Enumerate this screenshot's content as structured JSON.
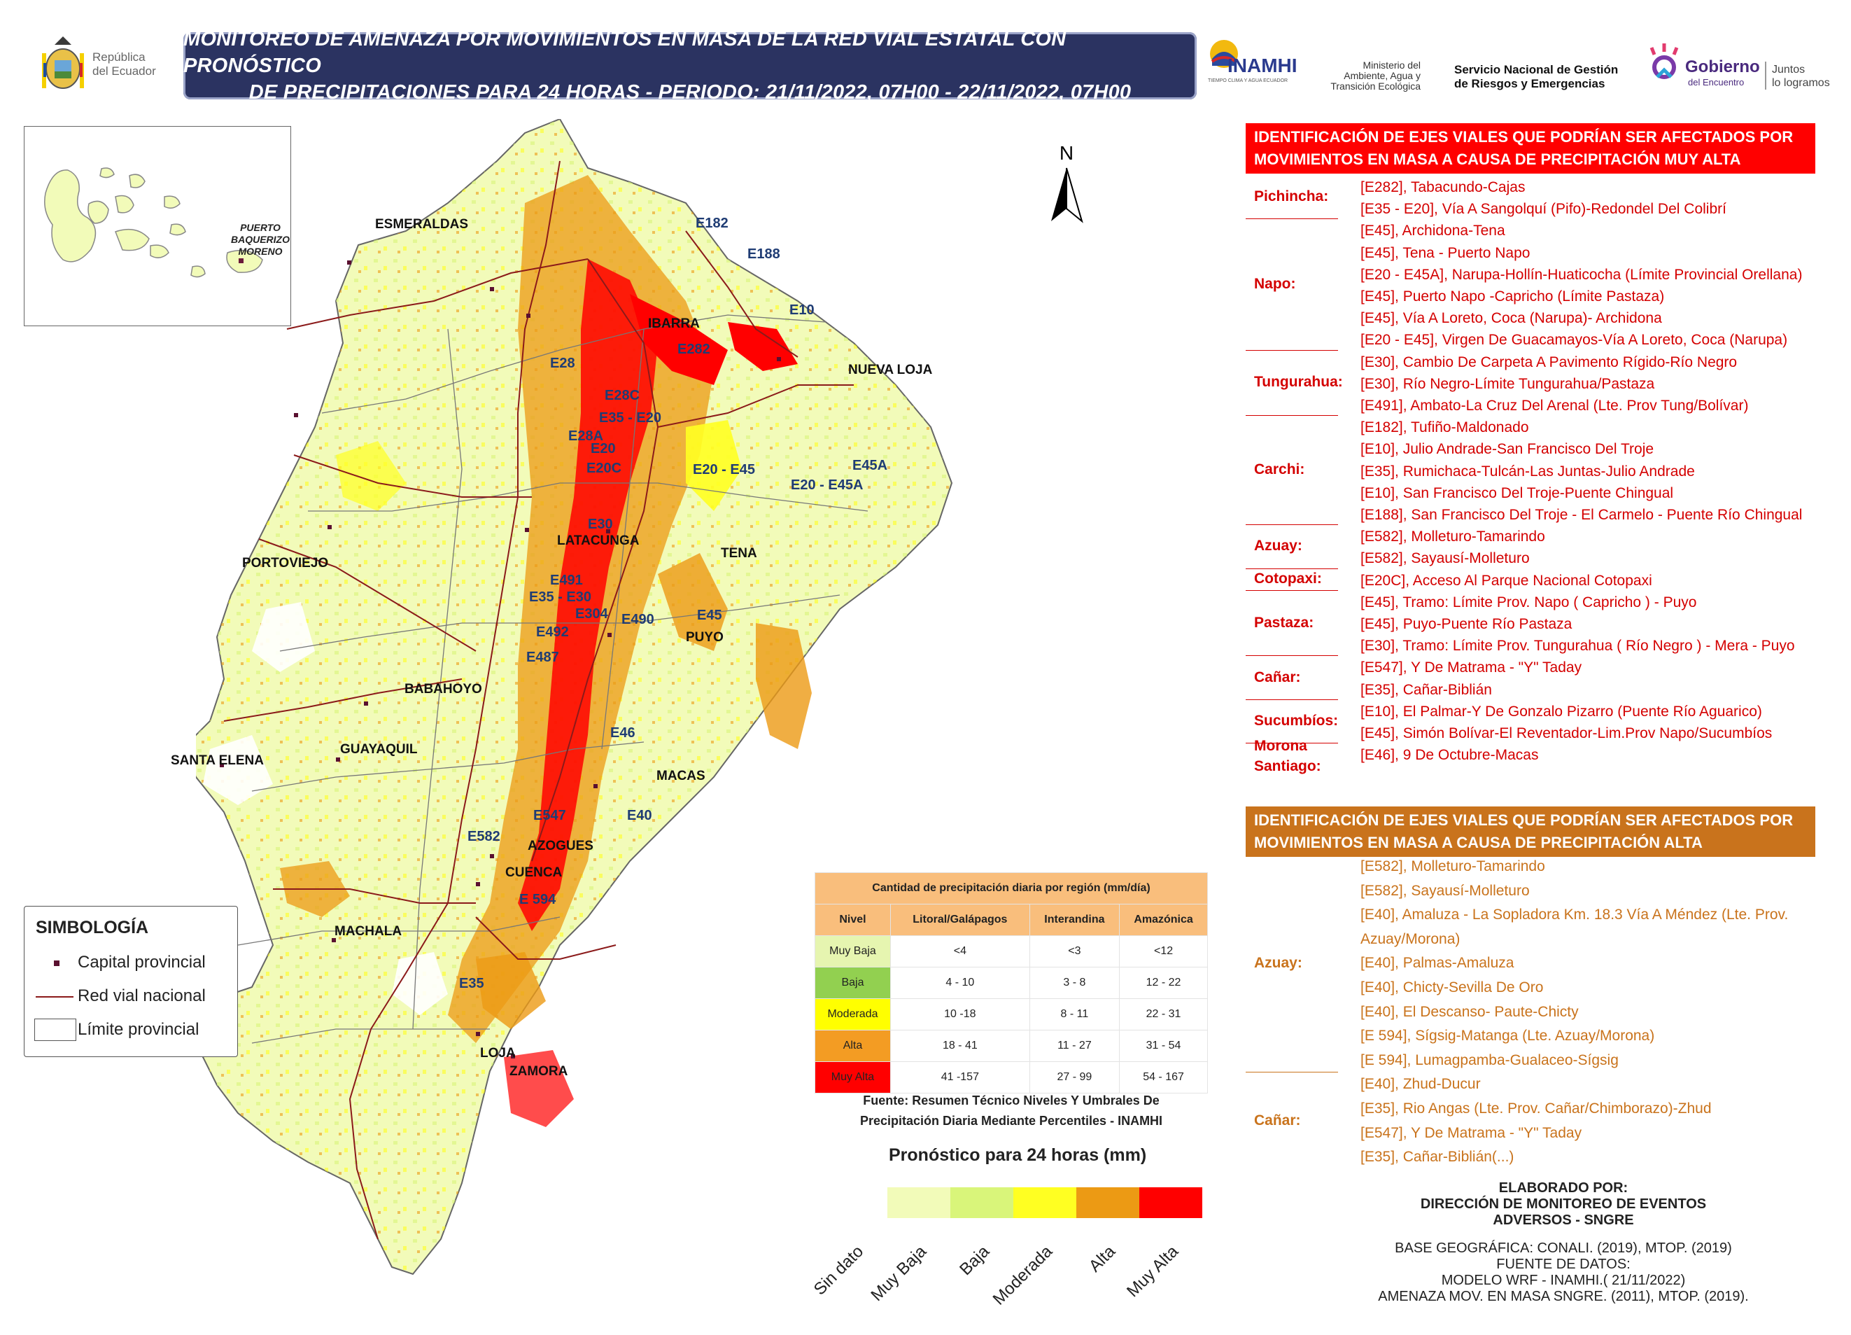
{
  "header": {
    "title_line1": "MONITOREO DE AMENAZA POR MOVIMIENTOS EN MASA DE LA RED VIAL  ESTATAL  CON PRONÓSTICO",
    "title_line2": "DE  PRECIPITACIONES PARA 24 HORAS - PERIODO: 21/11/2022, 07H00 - 22/11/2022, 07H00"
  },
  "logos": {
    "republica": [
      "República",
      "del Ecuador"
    ],
    "inamhi": "INAMHI",
    "inamhi_sub": "TIEMPO CLIMA Y AGUA ECUADOR",
    "ministerio": [
      "Ministerio del",
      "Ambiente, Agua y",
      "Transición Ecológica"
    ],
    "sngre": [
      "Servicio Nacional de Gestión",
      "de Riesgos y Emergencias"
    ],
    "gobierno": [
      "Gobierno",
      "del Encuentro"
    ],
    "juntos": [
      "Juntos",
      "lo logramos"
    ]
  },
  "map": {
    "north": "N",
    "inset_label": [
      "PUERTO",
      "BAQUERIZO",
      "MORENO"
    ],
    "cities": [
      "ESMERALDAS",
      "IBARRA",
      "NUEVA LOJA",
      "PORTOVIEJO",
      "LATACUNGA",
      "TENA",
      "PUYO",
      "BABAHOYO",
      "SANTA ELENA",
      "GUAYAQUIL",
      "MACAS",
      "AZOGUES",
      "CUENCA",
      "MACHALA",
      "LOJA",
      "ZAMORA"
    ],
    "roads": [
      "E182",
      "E188",
      "E10",
      "E282",
      "E28",
      "E28C",
      "E35 - E20",
      "E28A",
      "E20",
      "E20C",
      "E20 - E45",
      "E20 - E45A",
      "E45A",
      "E30",
      "E491",
      "E35 - E30",
      "E304",
      "E490",
      "E45",
      "E492",
      "E487",
      "E46",
      "E547",
      "E40",
      "E582",
      "E 594",
      "E35"
    ]
  },
  "legend": {
    "title": "SIMBOLOGÍA",
    "items": [
      "Capital provincial",
      "Red vial nacional",
      "Límite provincial"
    ]
  },
  "precip_table": {
    "title": "Cantidad de precipitación diaria por región (mm/día)",
    "headers": [
      "Nivel",
      "Litoral/Galápagos",
      "Interandina",
      "Amazónica"
    ],
    "rows": [
      {
        "level": "Muy Baja",
        "color": "#e6f5b0",
        "litoral": "<4",
        "interandina": "<3",
        "amazonica": "<12"
      },
      {
        "level": "Baja",
        "color": "#92d050",
        "litoral": "4 - 10",
        "interandina": "3 - 8",
        "amazonica": "12 - 22"
      },
      {
        "level": "Moderada",
        "color": "#ffff00",
        "litoral": "10 -18",
        "interandina": "8 - 11",
        "amazonica": "22 - 31"
      },
      {
        "level": "Alta",
        "color": "#f39c23",
        "litoral": "18 - 41",
        "interandina": "11 - 27",
        "amazonica": "31 - 54"
      },
      {
        "level": "Muy Alta",
        "color": "#ff0000",
        "litoral": "41 -157",
        "interandina": "27 - 99",
        "amazonica": "54 - 167"
      }
    ],
    "source": [
      "Fuente: Resumen Técnico Niveles Y Umbrales De",
      "Precipitación Diaria Mediante Percentiles - INAMHI"
    ]
  },
  "forecast_bar": {
    "title": "Pronóstico para 24 horas (mm)",
    "colors": [
      "#f2fbb9",
      "#d9f57a",
      "#ffff22",
      "#ec9a14",
      "#ff0000"
    ],
    "labels": [
      "Sin dato",
      "Muy Baja",
      "Baja",
      "Moderada",
      "Alta",
      "Muy Alta"
    ]
  },
  "muy_alta": {
    "header": [
      "IDENTIFICACIÓN DE EJES VIALES QUE PODRÍAN SER AFECTADOS POR",
      "MOVIMIENTOS EN MASA A CAUSA DE  PRECIPITACIÓN MUY ALTA"
    ],
    "provinces": [
      {
        "name": "Pichincha:",
        "routes": [
          "[E282], Tabacundo-Cajas",
          "[E35 - E20], Vía A Sangolquí (Pifo)-Redondel Del Colibrí"
        ]
      },
      {
        "name": "Napo:",
        "routes": [
          "[E45], Archidona-Tena",
          "[E45], Tena - Puerto Napo",
          "[E20 - E45A], Narupa-Hollín-Huaticocha (Límite Provincial Orellana)",
          "[E45], Puerto Napo -Capricho (Límite Pastaza)",
          "[E45], Vía A Loreto, Coca (Narupa)- Archidona",
          "[E20 - E45], Virgen De Guacamayos-Vía A Loreto, Coca (Narupa)"
        ]
      },
      {
        "name": "Tungurahua:",
        "routes": [
          "[E30], Cambio De Carpeta A Pavimento Rígido-Río Negro",
          "[E30], Río Negro-Límite Tungurahua/Pastaza",
          "[E491], Ambato-La Cruz Del Arenal (Lte. Prov Tung/Bolívar)"
        ]
      },
      {
        "name": "Carchi:",
        "routes": [
          "[E182], Tufiño-Maldonado",
          "[E10], Julio Andrade-San Francisco Del Troje",
          "[E35], Rumichaca-Tulcán-Las Juntas-Julio Andrade",
          "[E10], San Francisco Del Troje-Puente Chingual",
          "[E188], San Francisco Del Troje - El Carmelo - Puente Río Chingual"
        ]
      },
      {
        "name": "Azuay:",
        "routes": [
          "[E582], Molleturo-Tamarindo",
          "[E582], Sayausí-Molleturo"
        ]
      },
      {
        "name": "Cotopaxi:",
        "routes": [
          "[E20C], Acceso Al Parque Nacional Cotopaxi"
        ]
      },
      {
        "name": "Pastaza:",
        "routes": [
          "[E45], Tramo: Límite Prov. Napo ( Capricho ) - Puyo",
          "[E45], Puyo-Puente Río Pastaza",
          "[E30], Tramo: Límite Prov. Tungurahua ( Río Negro ) - Mera - Puyo"
        ]
      },
      {
        "name": "Cañar:",
        "routes": [
          "[E547], Y De Matrama - \"Y\" Taday",
          "[E35], Cañar-Biblián"
        ]
      },
      {
        "name": "Sucumbíos:",
        "routes": [
          "[E10], El Palmar-Y De Gonzalo Pizarro (Puente Río Aguarico)",
          "[E45], Simón Bolívar-El Reventador-Lim.Prov Napo/Sucumbíos"
        ]
      },
      {
        "name": "Morona Santiago:",
        "routes": [
          "[E46], 9 De Octubre-Macas"
        ]
      }
    ]
  },
  "alta": {
    "header": [
      "IDENTIFICACIÓN DE EJES VIALES QUE PODRÍAN SER AFECTADOS POR",
      "MOVIMIENTOS EN MASA A CAUSA DE  PRECIPITACIÓN ALTA"
    ],
    "provinces": [
      {
        "name": "Azuay:",
        "routes": [
          "[E582], Molleturo-Tamarindo",
          "[E582], Sayausí-Molleturo",
          "[E40], Amaluza - La Sopladora Km. 18.3 Vía A Méndez (Lte. Prov.",
          "Azuay/Morona)",
          "[E40], Palmas-Amaluza",
          "[E40], Chicty-Sevilla De Oro",
          "[E40], El Descanso- Paute-Chicty",
          "[E 594], Sígsig-Matanga (Lte. Azuay/Morona)",
          "[E 594], Lumagpamba-Gualaceo-Sígsig"
        ]
      },
      {
        "name": "Cañar:",
        "routes": [
          "[E40], Zhud-Ducur",
          "[E35], Rio Angas (Lte. Prov. Cañar/Chimborazo)-Zhud",
          "[E547], Y De Matrama - \"Y\" Taday",
          "[E35], Cañar-Biblián(...)"
        ]
      }
    ]
  },
  "credits": {
    "elaborado": [
      "ELABORADO POR:",
      "DIRECCIÓN DE MONITOREO DE EVENTOS",
      "ADVERSOS - SNGRE"
    ],
    "fuentes": [
      "BASE GEOGRÁFICA: CONALI. (2019), MTOP. (2019)",
      "FUENTE DE DATOS:",
      "MODELO WRF - INAMHI.( 21/11/2022)",
      "AMENAZA MOV. EN MASA SNGRE. (2011), MTOP. (2019)."
    ]
  }
}
